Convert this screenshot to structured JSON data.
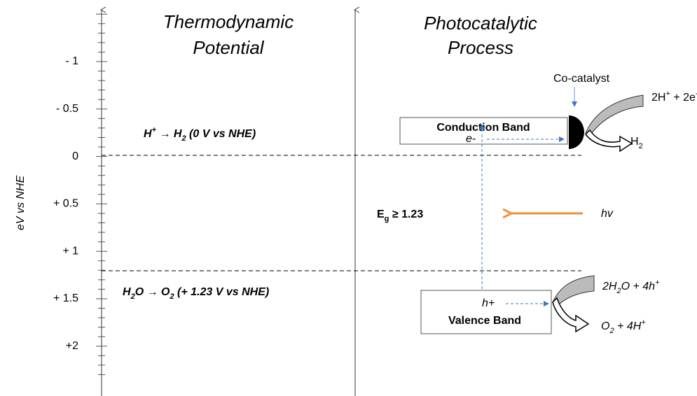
{
  "titles": {
    "left": [
      "Thermodynamic",
      "Potential"
    ],
    "right": [
      "Photocatalytic",
      "Process"
    ]
  },
  "axis": {
    "label": "eV vs NHE",
    "ticks": [
      "- 1",
      "- 0.5",
      "0",
      "+ 0.5",
      "+ 1",
      "+ 1.5",
      "+2"
    ]
  },
  "reactions": {
    "reduction": [
      "H",
      "+",
      " → H",
      "2",
      " (0 V vs NHE)"
    ],
    "oxidation": [
      "H",
      "2",
      "O → O",
      "2",
      " (+ 1.23 V vs NHE)"
    ]
  },
  "conduction_band": {
    "label": "Conduction Band",
    "carrier": "e-"
  },
  "valence_band": {
    "label": "Valence Band",
    "carrier": "h+"
  },
  "cocatalyst": "Co-catalyst",
  "band_gap": [
    "E",
    "g",
    " ≥ 1.23"
  ],
  "light": "hv",
  "cb_reaction": {
    "reactants": [
      "2H",
      "+",
      " + 2e",
      "-"
    ],
    "product": [
      "H",
      "2"
    ]
  },
  "vb_reaction": {
    "reactants": [
      "2H",
      "2",
      "O + 4h",
      "+"
    ],
    "products": [
      "O",
      "2",
      " + 4H",
      "+"
    ]
  }
}
